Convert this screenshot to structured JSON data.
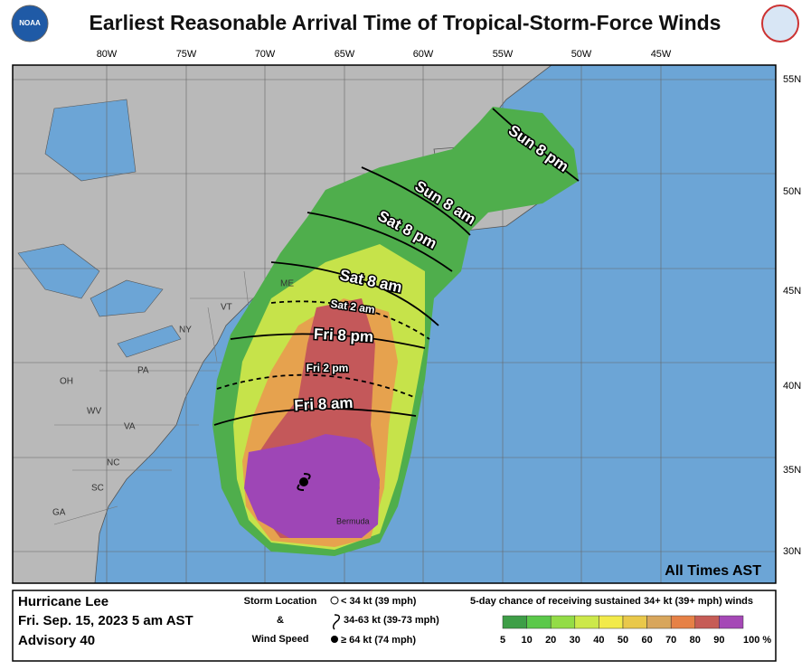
{
  "header": {
    "title": "Earliest Reasonable Arrival Time of Tropical-Storm-Force Winds",
    "logo_left": "NOAA"
  },
  "map": {
    "lon_labels": [
      "80W",
      "75W",
      "70W",
      "65W",
      "60W",
      "55W",
      "50W",
      "45W"
    ],
    "lat_labels": [
      "55N",
      "50N",
      "45N",
      "40N",
      "35N",
      "30N"
    ],
    "state_labels": [
      "ME",
      "VT",
      "NY",
      "PA",
      "OH",
      "WV",
      "VA",
      "NC",
      "SC",
      "GA"
    ],
    "place_label": "Bermuda",
    "arrival_times": [
      "Sun 8 pm",
      "Sun 8 am",
      "Sat 8 pm",
      "Sat 8 am",
      "Sat 2 am",
      "Fri 8 pm",
      "Fri 2 pm",
      "Fri 8 am"
    ],
    "time_zone_note": "All Times AST"
  },
  "legend": {
    "storm": "Hurricane Lee",
    "issued": "Fri. Sep. 15, 2023  5 am AST",
    "advisory": "Advisory 40",
    "symbol_title": [
      "Storm Location",
      "&",
      "Wind Speed"
    ],
    "symbols": [
      "< 34 kt (39 mph)",
      "34-63 kt (39-73 mph)",
      "≥ 64 kt (74 mph)"
    ],
    "scale_title": "5-day chance of receiving sustained 34+ kt (39+ mph) winds",
    "scale_labels": [
      "5",
      "10",
      "20",
      "30",
      "40",
      "50",
      "60",
      "70",
      "80",
      "90",
      "100 %"
    ],
    "scale_colors": [
      "#3e9e47",
      "#5bc84a",
      "#93dc46",
      "#cce84a",
      "#f2ea4a",
      "#e9c84a",
      "#d8a65c",
      "#e68146",
      "#c65c56",
      "#a548b6"
    ]
  }
}
